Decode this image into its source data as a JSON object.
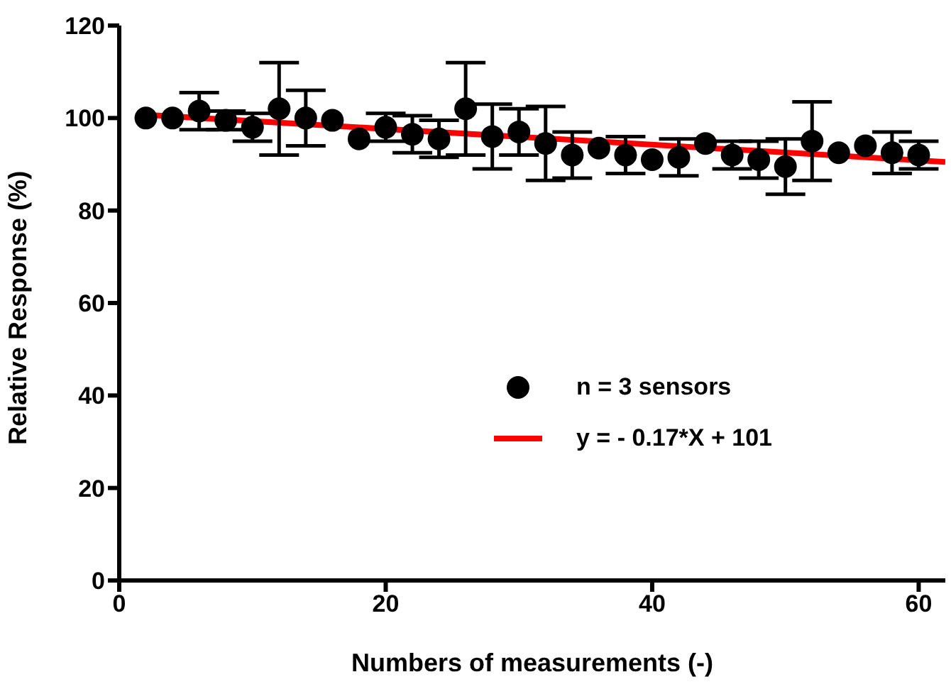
{
  "chart_data": {
    "type": "scatter",
    "xlabel": "Numbers of measurements (-)",
    "ylabel": "Relative Response (%)",
    "x": [
      2,
      4,
      6,
      8,
      10,
      12,
      14,
      16,
      18,
      20,
      22,
      24,
      26,
      28,
      30,
      32,
      34,
      36,
      38,
      40,
      42,
      44,
      46,
      48,
      50,
      52,
      54,
      56,
      58,
      60
    ],
    "series": [
      {
        "name": "n = 3 sensors",
        "marker": "circle",
        "color": "#000000",
        "values": [
          100,
          100,
          101.5,
          99.5,
          98,
          102,
          100,
          99.5,
          95.5,
          98,
          96.5,
          95.5,
          102,
          96,
          97,
          94.5,
          92,
          93.5,
          92,
          91,
          91.5,
          94.5,
          92,
          91,
          89.5,
          95,
          92.5,
          94,
          92.5,
          92
        ],
        "errors": [
          null,
          null,
          4,
          2,
          3,
          10,
          6,
          null,
          null,
          3,
          4,
          4,
          10,
          7,
          5,
          8,
          5,
          null,
          4,
          null,
          4,
          null,
          3,
          4,
          6,
          8.5,
          null,
          null,
          4.5,
          3
        ]
      },
      {
        "name": "y = - 0.17*X + 101",
        "type": "line",
        "color": "#ff0000",
        "x": [
          2,
          62
        ],
        "values": [
          100.7,
          90.5
        ]
      }
    ],
    "xlim": [
      0,
      62
    ],
    "xticks": [
      0,
      20,
      40,
      60
    ],
    "ylim": [
      0,
      120
    ],
    "yticks": [
      0,
      20,
      40,
      60,
      80,
      100,
      120
    ],
    "grid": false,
    "legend": "right",
    "line_style": "solid"
  }
}
